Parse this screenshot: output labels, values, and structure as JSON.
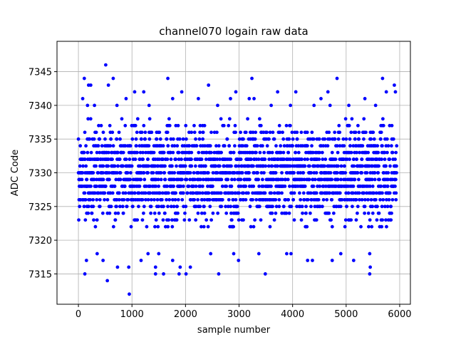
{
  "chart_data": {
    "type": "scatter",
    "title": "channel070 logain raw data",
    "xlabel": "sample number",
    "ylabel": "ADC Code",
    "xlim": [
      -400,
      6200
    ],
    "ylim": [
      7310.5,
      7349.5
    ],
    "xticks": [
      0,
      1000,
      2000,
      3000,
      4000,
      5000,
      6000
    ],
    "yticks": [
      7315,
      7320,
      7325,
      7330,
      7335,
      7340,
      7345
    ],
    "grid": true,
    "marker_color": "#0000ff",
    "series": [
      {
        "sample_count": 5940,
        "core_range": [
          7322,
          7338
        ],
        "outliers": [
          [
            510,
            7346
          ],
          [
            110,
            7344
          ],
          [
            650,
            7344
          ],
          [
            1670,
            7344
          ],
          [
            3240,
            7344
          ],
          [
            4830,
            7344
          ],
          [
            5680,
            7344
          ],
          [
            190,
            7343
          ],
          [
            230,
            7343
          ],
          [
            560,
            7343
          ],
          [
            2430,
            7343
          ],
          [
            5900,
            7343
          ],
          [
            1050,
            7342
          ],
          [
            1220,
            7342
          ],
          [
            1930,
            7342
          ],
          [
            2940,
            7342
          ],
          [
            3720,
            7342
          ],
          [
            4060,
            7342
          ],
          [
            4660,
            7342
          ],
          [
            5750,
            7342
          ],
          [
            5920,
            7342
          ],
          [
            80,
            7341
          ],
          [
            890,
            7341
          ],
          [
            1760,
            7341
          ],
          [
            2240,
            7341
          ],
          [
            2840,
            7341
          ],
          [
            3190,
            7341
          ],
          [
            3280,
            7341
          ],
          [
            4530,
            7341
          ],
          [
            5350,
            7341
          ],
          [
            170,
            7340
          ],
          [
            300,
            7340
          ],
          [
            720,
            7340
          ],
          [
            1320,
            7340
          ],
          [
            2600,
            7340
          ],
          [
            3600,
            7340
          ],
          [
            3960,
            7340
          ],
          [
            4400,
            7340
          ],
          [
            4700,
            7340
          ],
          [
            5050,
            7340
          ],
          [
            5550,
            7340
          ],
          [
            350,
            7318
          ],
          [
            1300,
            7318
          ],
          [
            1500,
            7318
          ],
          [
            2470,
            7318
          ],
          [
            2900,
            7318
          ],
          [
            3370,
            7318
          ],
          [
            3890,
            7318
          ],
          [
            3970,
            7318
          ],
          [
            4900,
            7318
          ],
          [
            5440,
            7318
          ],
          [
            150,
            7317
          ],
          [
            460,
            7317
          ],
          [
            1170,
            7317
          ],
          [
            1760,
            7317
          ],
          [
            2990,
            7317
          ],
          [
            4280,
            7317
          ],
          [
            4370,
            7317
          ],
          [
            4740,
            7317
          ],
          [
            5140,
            7317
          ],
          [
            730,
            7316
          ],
          [
            940,
            7316
          ],
          [
            1900,
            7316
          ],
          [
            2090,
            7316
          ],
          [
            1440,
            7316
          ],
          [
            5450,
            7316
          ],
          [
            120,
            7315
          ],
          [
            1440,
            7315
          ],
          [
            1590,
            7315
          ],
          [
            1880,
            7315
          ],
          [
            2010,
            7315
          ],
          [
            2620,
            7315
          ],
          [
            3490,
            7315
          ],
          [
            5440,
            7315
          ],
          [
            540,
            7314
          ],
          [
            950,
            7312
          ]
        ]
      }
    ]
  }
}
